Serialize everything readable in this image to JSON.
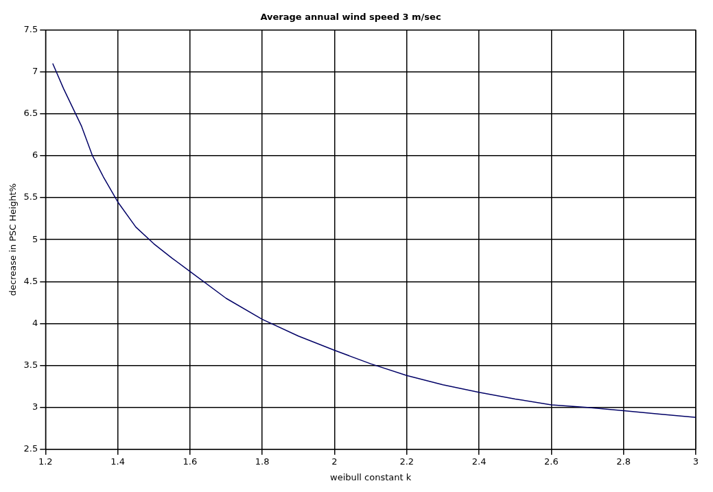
{
  "chart_data": {
    "type": "line",
    "title": "Average annual wind speed 3 m/sec",
    "xlabel": "weibull constant k",
    "ylabel": "decrease in PSC Height%",
    "x": [
      1.22,
      1.25,
      1.3,
      1.33,
      1.36,
      1.4,
      1.45,
      1.5,
      1.55,
      1.6,
      1.7,
      1.8,
      1.9,
      2.0,
      2.1,
      2.2,
      2.3,
      2.4,
      2.5,
      2.6,
      2.7,
      2.8,
      2.9,
      3.0
    ],
    "series": [
      {
        "color": "#000066",
        "values": [
          7.1,
          6.8,
          6.35,
          6.0,
          5.75,
          5.45,
          5.15,
          4.95,
          4.78,
          4.62,
          4.3,
          4.05,
          3.85,
          3.68,
          3.52,
          3.38,
          3.27,
          3.18,
          3.1,
          3.03,
          3.0,
          2.96,
          2.92,
          2.88
        ]
      }
    ],
    "xlim": [
      1.2,
      3
    ],
    "xticks": [
      1.2,
      1.4,
      1.6,
      1.8,
      2,
      2.2,
      2.4,
      2.6,
      2.8,
      3
    ],
    "ylim": [
      2.5,
      7.5
    ],
    "yticks": [
      2.5,
      3,
      3.5,
      4,
      4.5,
      5,
      5.5,
      6,
      6.5,
      7,
      7.5
    ],
    "grid": true,
    "marker": "none",
    "line_style": "solid",
    "legend": false
  }
}
